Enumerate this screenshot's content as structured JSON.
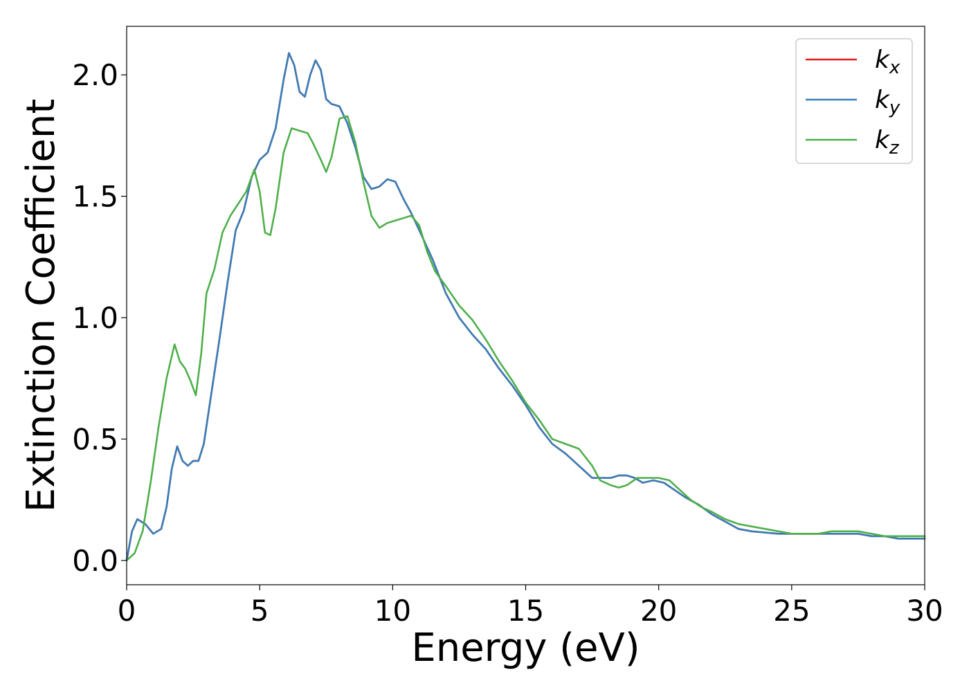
{
  "chart_data": {
    "type": "line",
    "xlabel": "Energy (eV)",
    "ylabel": "Extinction Coefficient",
    "xlim": [
      0,
      30
    ],
    "ylim": [
      -0.1,
      2.2
    ],
    "xticks": [
      0,
      5,
      10,
      15,
      20,
      25,
      30
    ],
    "xtick_labels": [
      "0",
      "5",
      "10",
      "15",
      "20",
      "25",
      "30"
    ],
    "yticks": [
      0.0,
      0.5,
      1.0,
      1.5,
      2.0
    ],
    "ytick_labels": [
      "0.0",
      "0.5",
      "1.0",
      "1.5",
      "2.0"
    ],
    "grid": false,
    "legend_position": "top-right",
    "series": [
      {
        "name": "k_x",
        "legend_main": "k",
        "legend_sub": "x",
        "color": "#e41a1c",
        "x": [
          0,
          0.2,
          0.4,
          0.7,
          1.0,
          1.3,
          1.5,
          1.7,
          1.9,
          2.1,
          2.3,
          2.5,
          2.7,
          2.9,
          3.2,
          3.5,
          3.8,
          4.1,
          4.4,
          4.7,
          5.0,
          5.3,
          5.6,
          5.9,
          6.1,
          6.3,
          6.5,
          6.7,
          6.9,
          7.1,
          7.3,
          7.5,
          7.7,
          8.0,
          8.3,
          8.6,
          8.9,
          9.2,
          9.5,
          9.8,
          10.1,
          10.4,
          10.7,
          11.0,
          11.5,
          12.0,
          12.5,
          13.0,
          13.5,
          14.0,
          14.5,
          15.0,
          15.5,
          16.0,
          16.5,
          17.0,
          17.5,
          17.8,
          18.2,
          18.5,
          18.8,
          19.1,
          19.4,
          19.8,
          20.2,
          20.6,
          21.0,
          21.5,
          22.0,
          22.5,
          23.0,
          23.5,
          24.0,
          24.5,
          25.0,
          25.5,
          26.0,
          26.5,
          27.0,
          27.5,
          28.0,
          28.5,
          29.0,
          29.5,
          30.0
        ],
        "values": [
          0.0,
          0.12,
          0.17,
          0.15,
          0.11,
          0.13,
          0.22,
          0.38,
          0.47,
          0.41,
          0.39,
          0.41,
          0.41,
          0.48,
          0.7,
          0.92,
          1.15,
          1.36,
          1.44,
          1.58,
          1.65,
          1.68,
          1.78,
          1.98,
          2.09,
          2.04,
          1.93,
          1.91,
          2.0,
          2.06,
          2.02,
          1.9,
          1.88,
          1.87,
          1.8,
          1.7,
          1.58,
          1.53,
          1.54,
          1.57,
          1.56,
          1.49,
          1.43,
          1.36,
          1.24,
          1.1,
          1.0,
          0.93,
          0.87,
          0.79,
          0.72,
          0.64,
          0.55,
          0.48,
          0.44,
          0.39,
          0.34,
          0.34,
          0.34,
          0.35,
          0.35,
          0.34,
          0.32,
          0.33,
          0.32,
          0.29,
          0.26,
          0.23,
          0.19,
          0.16,
          0.13,
          0.12,
          0.115,
          0.11,
          0.11,
          0.11,
          0.11,
          0.11,
          0.11,
          0.11,
          0.1,
          0.1,
          0.09,
          0.09,
          0.09
        ]
      },
      {
        "name": "k_y",
        "legend_main": "k",
        "legend_sub": "y",
        "color": "#377eb8",
        "x": [
          0,
          0.2,
          0.4,
          0.7,
          1.0,
          1.3,
          1.5,
          1.7,
          1.9,
          2.1,
          2.3,
          2.5,
          2.7,
          2.9,
          3.2,
          3.5,
          3.8,
          4.1,
          4.4,
          4.7,
          5.0,
          5.3,
          5.6,
          5.9,
          6.1,
          6.3,
          6.5,
          6.7,
          6.9,
          7.1,
          7.3,
          7.5,
          7.7,
          8.0,
          8.3,
          8.6,
          8.9,
          9.2,
          9.5,
          9.8,
          10.1,
          10.4,
          10.7,
          11.0,
          11.5,
          12.0,
          12.5,
          13.0,
          13.5,
          14.0,
          14.5,
          15.0,
          15.5,
          16.0,
          16.5,
          17.0,
          17.5,
          17.8,
          18.2,
          18.5,
          18.8,
          19.1,
          19.4,
          19.8,
          20.2,
          20.6,
          21.0,
          21.5,
          22.0,
          22.5,
          23.0,
          23.5,
          24.0,
          24.5,
          25.0,
          25.5,
          26.0,
          26.5,
          27.0,
          27.5,
          28.0,
          28.5,
          29.0,
          29.5,
          30.0
        ],
        "values": [
          0.0,
          0.12,
          0.17,
          0.15,
          0.11,
          0.13,
          0.22,
          0.38,
          0.47,
          0.41,
          0.39,
          0.41,
          0.41,
          0.48,
          0.7,
          0.92,
          1.15,
          1.36,
          1.44,
          1.58,
          1.65,
          1.68,
          1.78,
          1.98,
          2.09,
          2.04,
          1.93,
          1.91,
          2.0,
          2.06,
          2.02,
          1.9,
          1.88,
          1.87,
          1.8,
          1.7,
          1.58,
          1.53,
          1.54,
          1.57,
          1.56,
          1.49,
          1.43,
          1.36,
          1.24,
          1.1,
          1.0,
          0.93,
          0.87,
          0.79,
          0.72,
          0.64,
          0.55,
          0.48,
          0.44,
          0.39,
          0.34,
          0.34,
          0.34,
          0.35,
          0.35,
          0.34,
          0.32,
          0.33,
          0.32,
          0.29,
          0.26,
          0.23,
          0.19,
          0.16,
          0.13,
          0.12,
          0.115,
          0.11,
          0.11,
          0.11,
          0.11,
          0.11,
          0.11,
          0.11,
          0.1,
          0.1,
          0.09,
          0.09,
          0.09
        ]
      },
      {
        "name": "k_z",
        "legend_main": "k",
        "legend_sub": "z",
        "color": "#4daf4a",
        "x": [
          0,
          0.3,
          0.6,
          0.9,
          1.2,
          1.5,
          1.8,
          2.0,
          2.2,
          2.4,
          2.6,
          2.8,
          3.0,
          3.3,
          3.6,
          3.9,
          4.2,
          4.5,
          4.8,
          5.0,
          5.2,
          5.4,
          5.6,
          5.9,
          6.2,
          6.5,
          6.8,
          7.0,
          7.3,
          7.5,
          7.7,
          8.0,
          8.3,
          8.6,
          8.9,
          9.2,
          9.5,
          9.8,
          10.1,
          10.4,
          10.7,
          11.0,
          11.3,
          11.6,
          12.0,
          12.5,
          13.0,
          13.5,
          14.0,
          14.5,
          15.0,
          15.5,
          16.0,
          16.5,
          17.0,
          17.5,
          17.8,
          18.2,
          18.5,
          18.8,
          19.2,
          19.6,
          20.0,
          20.4,
          20.8,
          21.2,
          21.6,
          22.0,
          22.5,
          23.0,
          23.5,
          24.0,
          24.5,
          25.0,
          25.5,
          26.0,
          26.5,
          27.0,
          27.5,
          28.0,
          28.5,
          29.0,
          29.5,
          30.0
        ],
        "values": [
          0.0,
          0.03,
          0.12,
          0.32,
          0.55,
          0.75,
          0.89,
          0.82,
          0.79,
          0.74,
          0.68,
          0.85,
          1.1,
          1.2,
          1.35,
          1.42,
          1.47,
          1.52,
          1.61,
          1.52,
          1.35,
          1.34,
          1.45,
          1.68,
          1.78,
          1.77,
          1.76,
          1.72,
          1.65,
          1.6,
          1.66,
          1.82,
          1.83,
          1.72,
          1.56,
          1.42,
          1.37,
          1.39,
          1.4,
          1.41,
          1.42,
          1.38,
          1.27,
          1.19,
          1.13,
          1.05,
          0.99,
          0.91,
          0.82,
          0.74,
          0.65,
          0.58,
          0.5,
          0.48,
          0.46,
          0.39,
          0.33,
          0.31,
          0.3,
          0.31,
          0.34,
          0.34,
          0.34,
          0.33,
          0.29,
          0.25,
          0.22,
          0.2,
          0.17,
          0.15,
          0.14,
          0.13,
          0.12,
          0.11,
          0.11,
          0.11,
          0.12,
          0.12,
          0.12,
          0.11,
          0.1,
          0.1,
          0.1,
          0.1
        ]
      }
    ]
  }
}
